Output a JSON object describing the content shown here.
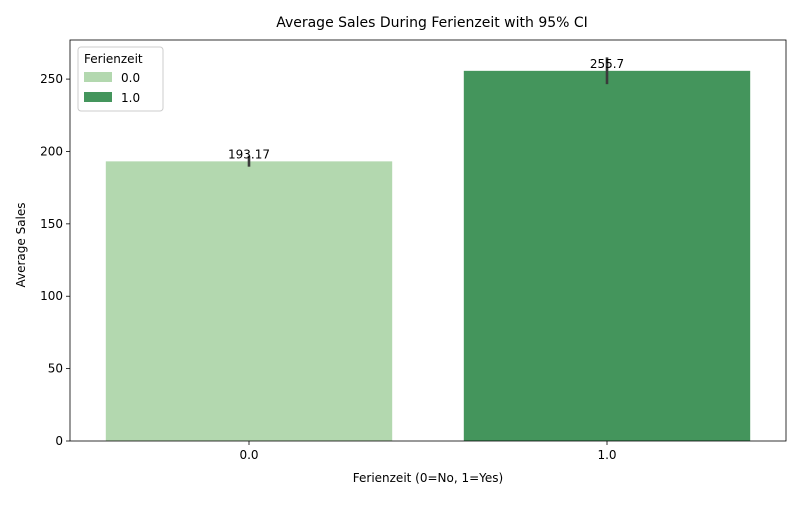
{
  "chart_data": {
    "type": "bar",
    "title": "Average Sales During Ferienzeit with 95% CI",
    "xlabel": "Ferienzeit (0=No, 1=Yes)",
    "ylabel": "Average Sales",
    "categories": [
      "0.0",
      "1.0"
    ],
    "values": [
      193.17,
      255.7
    ],
    "value_labels": [
      "193.17",
      "255.7"
    ],
    "ci": [
      [
        189.5,
        197.0
      ],
      [
        246.5,
        265.0
      ]
    ],
    "ylim": [
      0,
      277
    ],
    "yticks": [
      0,
      50,
      100,
      150,
      200,
      250
    ],
    "legend": {
      "title": "Ferienzeit",
      "placement": "top-left",
      "entries": [
        "0.0",
        "1.0"
      ]
    },
    "colors": [
      "#b3d8af",
      "#44955c"
    ],
    "error_bar_color": "#3a3a3a",
    "grid": false
  }
}
